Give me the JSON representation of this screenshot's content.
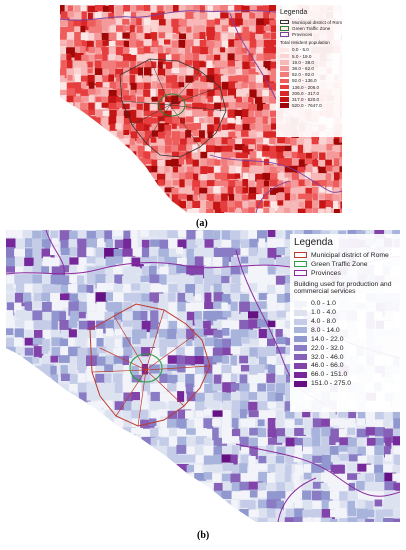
{
  "panel_a": {
    "caption": "(a)",
    "legend": {
      "title": "Legenda",
      "layers": [
        {
          "label": "Municipal district of Rome",
          "color": "#333333"
        },
        {
          "label": "Green Traffic Zone",
          "color": "#2e7d32"
        },
        {
          "label": "Provinces",
          "color": "#7b3fa0"
        }
      ],
      "subtitle": "Total resident population",
      "classes": [
        {
          "label": "0.0 - 5.0",
          "color": "#fde8e8"
        },
        {
          "label": "5.0 - 19.0",
          "color": "#fbd3d3"
        },
        {
          "label": "19.0 - 38.0",
          "color": "#f8b8b8"
        },
        {
          "label": "38.0 - 62.0",
          "color": "#f59a9a"
        },
        {
          "label": "62.0 - 92.0",
          "color": "#f27c7c"
        },
        {
          "label": "92.0 - 136.0",
          "color": "#ee5c5c"
        },
        {
          "label": "136.0 - 206.0",
          "color": "#e63e3e"
        },
        {
          "label": "206.0 - 317.0",
          "color": "#d92626"
        },
        {
          "label": "317.0 - 520.0",
          "color": "#c41414"
        },
        {
          "label": "520.0 - 7647.0",
          "color": "#a00808"
        }
      ]
    }
  },
  "panel_b": {
    "caption": "(b)",
    "legend": {
      "title": "Legenda",
      "layers": [
        {
          "label": "Municipal district of Rome",
          "color": "#c0392b"
        },
        {
          "label": "Green Traffic Zone",
          "color": "#27a046"
        },
        {
          "label": "Provinces",
          "color": "#8e2a9e"
        }
      ],
      "subtitle": "Building used for production and commercial services",
      "classes": [
        {
          "label": "0.0 - 1.0",
          "color": "#f3f4fa"
        },
        {
          "label": "1.0 - 4.0",
          "color": "#dde2f1"
        },
        {
          "label": "4.0 - 8.0",
          "color": "#c4cce8"
        },
        {
          "label": "8.0 - 14.0",
          "color": "#a9b4dc"
        },
        {
          "label": "14.0 - 22.0",
          "color": "#9098cf"
        },
        {
          "label": "22.0 - 32.0",
          "color": "#8a7cc4"
        },
        {
          "label": "32.0 - 46.0",
          "color": "#8760b8"
        },
        {
          "label": "46.0 - 66.0",
          "color": "#8244aa"
        },
        {
          "label": "66.0 - 151.0",
          "color": "#76289a"
        },
        {
          "label": "151.0 - 275.0",
          "color": "#651184"
        }
      ]
    }
  }
}
